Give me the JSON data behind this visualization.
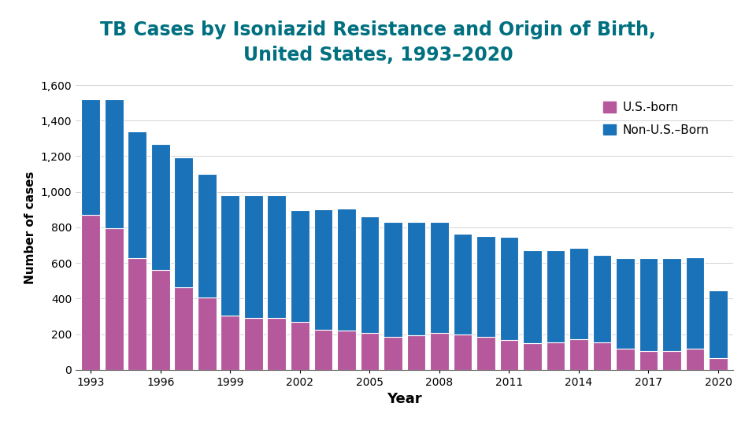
{
  "title_line1": "TB Cases by Isoniazid Resistance and Origin of Birth,",
  "title_line2": "United States, 1993–2020",
  "title_color": "#007080",
  "xlabel": "Year",
  "ylabel": "Number of cases",
  "years": [
    1993,
    1994,
    1995,
    1996,
    1997,
    1998,
    1999,
    2000,
    2001,
    2002,
    2003,
    2004,
    2005,
    2006,
    2007,
    2008,
    2009,
    2010,
    2011,
    2012,
    2013,
    2014,
    2015,
    2016,
    2017,
    2018,
    2019,
    2020
  ],
  "us_born": [
    870,
    795,
    625,
    560,
    465,
    405,
    305,
    290,
    290,
    270,
    225,
    220,
    205,
    185,
    195,
    205,
    200,
    185,
    165,
    150,
    155,
    170,
    155,
    120,
    105,
    105,
    120,
    65
  ],
  "non_us_born": [
    650,
    725,
    715,
    710,
    730,
    695,
    675,
    690,
    690,
    625,
    675,
    685,
    655,
    645,
    635,
    625,
    565,
    565,
    580,
    520,
    515,
    515,
    490,
    505,
    520,
    520,
    510,
    380
  ],
  "us_born_color": "#b5589c",
  "non_us_born_color": "#1a72b8",
  "background_color": "#ffffff",
  "ylim": [
    0,
    1600
  ],
  "yticks": [
    0,
    200,
    400,
    600,
    800,
    1000,
    1200,
    1400,
    1600
  ],
  "ytick_labels": [
    "0",
    "200",
    "400",
    "600",
    "800",
    "1,000",
    "1,200",
    "1,400",
    "1,600"
  ],
  "xlabel_fontsize": 13,
  "ylabel_fontsize": 11,
  "title_fontsize": 17,
  "legend_labels": [
    "U.S.-born",
    "Non-U.S.–Born"
  ],
  "xtick_step": 3,
  "bar_width": 0.8,
  "bar_edge_color": "white",
  "bar_linewidth": 0.8
}
